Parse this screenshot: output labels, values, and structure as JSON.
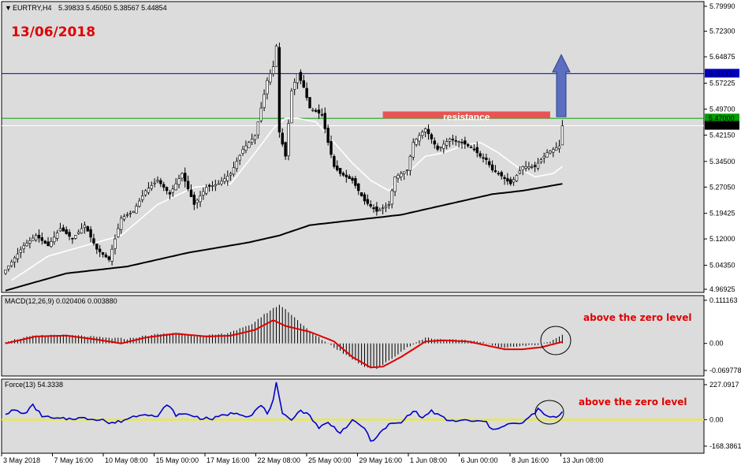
{
  "header": {
    "symbol": "EURTRY,H4",
    "ohlc": "5.39833 5.45050 5.38567 5.44854",
    "date_note": "13/06/2018"
  },
  "colors": {
    "bull_candle": "#ffffff",
    "bear_candle": "#000000",
    "fast_ma": "#ffffff",
    "slow_ma": "#000000",
    "macd_signal": "#e00000",
    "force_line": "#0000c8",
    "zero_line": "#f0f000",
    "blue_level": "#0000c0",
    "green_level": "#00a000",
    "resistance_box": "#e85454",
    "arrow": "#5a6fc0",
    "annotation": "#e00000"
  },
  "chart_data": [
    {
      "type": "line",
      "title": "EURTRY,H4",
      "subtitle": "5.39833 5.45050 5.38567 5.44854",
      "ylim": [
        4.96925,
        5.7999
      ],
      "y_ticks": [
        "5.79990",
        "5.72300",
        "5.64875",
        "5.57225",
        "5.49700",
        "5.42150",
        "5.34500",
        "5.27050",
        "5.19425",
        "5.12000",
        "5.04350",
        "4.96925"
      ],
      "x_ticks": [
        "3 May 2018",
        "7 May 16:00",
        "10 May 08:00",
        "15 May 00:00",
        "17 May 16:00",
        "22 May 08:00",
        "25 May 00:00",
        "29 May 16:00",
        "1 Jun 08:00",
        "6 Jun 00:00",
        "8 Jun 16:00",
        "13 Jun 08:00"
      ],
      "price_anchors": [
        [
          0,
          5.03
        ],
        [
          6,
          5.1
        ],
        [
          10,
          5.13
        ],
        [
          14,
          5.1
        ],
        [
          18,
          5.15
        ],
        [
          22,
          5.12
        ],
        [
          26,
          5.16
        ],
        [
          30,
          5.09
        ],
        [
          34,
          5.06
        ],
        [
          38,
          5.18
        ],
        [
          42,
          5.2
        ],
        [
          46,
          5.26
        ],
        [
          50,
          5.29
        ],
        [
          54,
          5.25
        ],
        [
          58,
          5.31
        ],
        [
          62,
          5.22
        ],
        [
          66,
          5.27
        ],
        [
          70,
          5.28
        ],
        [
          74,
          5.31
        ],
        [
          78,
          5.38
        ],
        [
          82,
          5.42
        ],
        [
          86,
          5.58
        ],
        [
          88,
          5.62
        ],
        [
          89,
          5.68
        ],
        [
          90,
          5.43
        ],
        [
          92,
          5.36
        ],
        [
          94,
          5.55
        ],
        [
          96,
          5.6
        ],
        [
          98,
          5.56
        ],
        [
          100,
          5.5
        ],
        [
          102,
          5.49
        ],
        [
          104,
          5.48
        ],
        [
          106,
          5.4
        ],
        [
          108,
          5.33
        ],
        [
          110,
          5.31
        ],
        [
          114,
          5.29
        ],
        [
          118,
          5.23
        ],
        [
          122,
          5.2
        ],
        [
          126,
          5.22
        ],
        [
          128,
          5.3
        ],
        [
          132,
          5.32
        ],
        [
          134,
          5.4
        ],
        [
          136,
          5.42
        ],
        [
          138,
          5.44
        ],
        [
          142,
          5.38
        ],
        [
          146,
          5.41
        ],
        [
          150,
          5.4
        ],
        [
          154,
          5.38
        ],
        [
          156,
          5.36
        ],
        [
          158,
          5.35
        ],
        [
          160,
          5.32
        ],
        [
          162,
          5.31
        ],
        [
          166,
          5.28
        ],
        [
          170,
          5.33
        ],
        [
          174,
          5.33
        ],
        [
          178,
          5.37
        ],
        [
          182,
          5.39
        ],
        [
          183,
          5.4485
        ]
      ],
      "fast_ma_anchors": [
        [
          2,
          5.0
        ],
        [
          14,
          5.07
        ],
        [
          26,
          5.1
        ],
        [
          38,
          5.13
        ],
        [
          50,
          5.22
        ],
        [
          62,
          5.27
        ],
        [
          74,
          5.28
        ],
        [
          82,
          5.37
        ],
        [
          88,
          5.44
        ],
        [
          92,
          5.47
        ],
        [
          96,
          5.47
        ],
        [
          102,
          5.46
        ],
        [
          108,
          5.4
        ],
        [
          114,
          5.34
        ],
        [
          120,
          5.29
        ],
        [
          126,
          5.26
        ],
        [
          132,
          5.31
        ],
        [
          138,
          5.36
        ],
        [
          144,
          5.37
        ],
        [
          150,
          5.39
        ],
        [
          156,
          5.4
        ],
        [
          162,
          5.37
        ],
        [
          168,
          5.33
        ],
        [
          174,
          5.3
        ],
        [
          180,
          5.31
        ],
        [
          183,
          5.33
        ]
      ],
      "slow_ma_anchors": [
        [
          0,
          4.97
        ],
        [
          20,
          5.02
        ],
        [
          40,
          5.04
        ],
        [
          60,
          5.08
        ],
        [
          80,
          5.11
        ],
        [
          90,
          5.13
        ],
        [
          100,
          5.16
        ],
        [
          110,
          5.17
        ],
        [
          120,
          5.18
        ],
        [
          130,
          5.19
        ],
        [
          140,
          5.21
        ],
        [
          150,
          5.23
        ],
        [
          160,
          5.25
        ],
        [
          170,
          5.26
        ],
        [
          183,
          5.28
        ]
      ],
      "levels": [
        {
          "name": "blue",
          "value": 5.6,
          "label": "5.60000"
        },
        {
          "name": "green",
          "value": 5.47,
          "label": "5.47000"
        },
        {
          "name": "current",
          "value": 5.44854,
          "label": "5.44854"
        }
      ],
      "resistance": {
        "label": "resistance",
        "x_from": 124,
        "x_to": 179,
        "y_low": 5.47,
        "y_high": 5.49
      }
    },
    {
      "type": "bar",
      "title": "MACD(12,26,9) 0.020406 0.003880",
      "ylim": [
        -0.069778,
        0.111163
      ],
      "y_ticks": [
        "0.111163",
        "0.00",
        "-0.069778"
      ],
      "histogram_anchors": [
        [
          0,
          0.005
        ],
        [
          8,
          0.018
        ],
        [
          16,
          0.022
        ],
        [
          24,
          0.02
        ],
        [
          32,
          0.015
        ],
        [
          40,
          0.012
        ],
        [
          48,
          0.022
        ],
        [
          56,
          0.028
        ],
        [
          64,
          0.018
        ],
        [
          72,
          0.025
        ],
        [
          80,
          0.045
        ],
        [
          86,
          0.08
        ],
        [
          90,
          0.1
        ],
        [
          94,
          0.075
        ],
        [
          100,
          0.03
        ],
        [
          106,
          0.0
        ],
        [
          112,
          -0.03
        ],
        [
          118,
          -0.06
        ],
        [
          122,
          -0.065
        ],
        [
          126,
          -0.045
        ],
        [
          132,
          -0.01
        ],
        [
          138,
          0.015
        ],
        [
          144,
          0.01
        ],
        [
          150,
          0.008
        ],
        [
          156,
          0.005
        ],
        [
          162,
          -0.01
        ],
        [
          168,
          -0.008
        ],
        [
          174,
          -0.004
        ],
        [
          178,
          0.002
        ],
        [
          183,
          0.022
        ]
      ],
      "signal_anchors": [
        [
          0,
          0.0
        ],
        [
          10,
          0.018
        ],
        [
          20,
          0.02
        ],
        [
          30,
          0.01
        ],
        [
          38,
          0.0
        ],
        [
          46,
          0.015
        ],
        [
          56,
          0.025
        ],
        [
          66,
          0.018
        ],
        [
          74,
          0.02
        ],
        [
          82,
          0.035
        ],
        [
          88,
          0.06
        ],
        [
          92,
          0.045
        ],
        [
          100,
          0.03
        ],
        [
          108,
          0.005
        ],
        [
          114,
          -0.035
        ],
        [
          120,
          -0.062
        ],
        [
          124,
          -0.06
        ],
        [
          130,
          -0.035
        ],
        [
          138,
          0.005
        ],
        [
          144,
          0.008
        ],
        [
          152,
          0.005
        ],
        [
          158,
          -0.005
        ],
        [
          164,
          -0.015
        ],
        [
          170,
          -0.015
        ],
        [
          176,
          -0.01
        ],
        [
          183,
          0.004
        ]
      ],
      "annotation": "above the zero level"
    },
    {
      "type": "line",
      "title": "Force(13) 54.3338",
      "ylim": [
        -168.3861,
        227.0917
      ],
      "y_ticks": [
        "227.0917",
        "0.00",
        "-168.3861"
      ],
      "series_anchors": [
        [
          0,
          40
        ],
        [
          3,
          60
        ],
        [
          6,
          35
        ],
        [
          9,
          90
        ],
        [
          12,
          25
        ],
        [
          16,
          5
        ],
        [
          20,
          5
        ],
        [
          24,
          10
        ],
        [
          28,
          5
        ],
        [
          32,
          2
        ],
        [
          34,
          -25
        ],
        [
          38,
          -10
        ],
        [
          42,
          20
        ],
        [
          46,
          40
        ],
        [
          50,
          15
        ],
        [
          53,
          100
        ],
        [
          56,
          30
        ],
        [
          60,
          35
        ],
        [
          64,
          10
        ],
        [
          68,
          5
        ],
        [
          72,
          30
        ],
        [
          76,
          45
        ],
        [
          80,
          20
        ],
        [
          84,
          90
        ],
        [
          86,
          40
        ],
        [
          88,
          120
        ],
        [
          89,
          230
        ],
        [
          91,
          30
        ],
        [
          94,
          5
        ],
        [
          97,
          60
        ],
        [
          100,
          25
        ],
        [
          103,
          -50
        ],
        [
          106,
          -20
        ],
        [
          110,
          -80
        ],
        [
          114,
          -10
        ],
        [
          118,
          -50
        ],
        [
          120,
          -140
        ],
        [
          123,
          -90
        ],
        [
          126,
          -30
        ],
        [
          130,
          -20
        ],
        [
          134,
          60
        ],
        [
          137,
          10
        ],
        [
          140,
          55
        ],
        [
          143,
          20
        ],
        [
          146,
          -10
        ],
        [
          150,
          -5
        ],
        [
          154,
          -10
        ],
        [
          158,
          -15
        ],
        [
          160,
          -70
        ],
        [
          163,
          -40
        ],
        [
          166,
          -25
        ],
        [
          169,
          -30
        ],
        [
          172,
          10
        ],
        [
          175,
          65
        ],
        [
          178,
          20
        ],
        [
          181,
          10
        ],
        [
          183,
          54
        ]
      ],
      "annotation": "above the zero level"
    }
  ]
}
